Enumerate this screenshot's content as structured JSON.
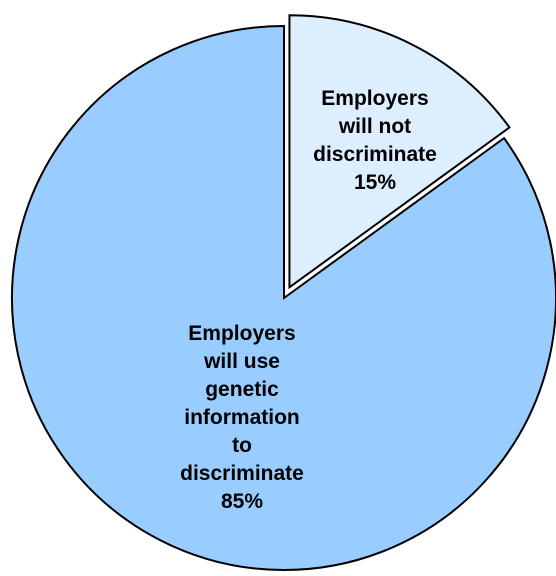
{
  "chart_data": {
    "type": "pie",
    "slices": [
      {
        "label_lines": [
          "Employers",
          "will not",
          "discriminate"
        ],
        "value": 15,
        "value_label": "15%",
        "color": "#ddeeff",
        "exploded": true
      },
      {
        "label_lines": [
          "Employers",
          "will use",
          "genetic",
          "information",
          "to",
          "discriminate"
        ],
        "value": 85,
        "value_label": "85%",
        "color": "#99ccff",
        "exploded": false
      }
    ],
    "start": "12 o'clock",
    "direction": "clockwise",
    "legend": "none"
  }
}
